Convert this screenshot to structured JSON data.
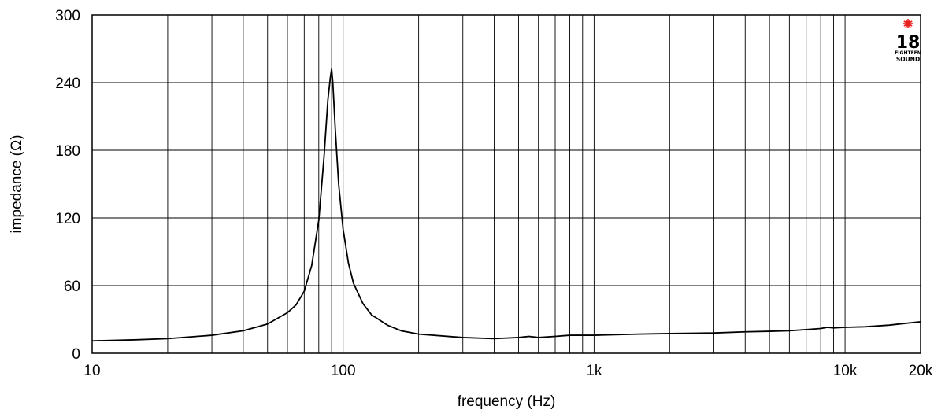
{
  "chart_data": {
    "type": "line",
    "title": "",
    "xlabel": "frequency (Hz)",
    "ylabel": "impedance (Ω)",
    "x_scale": "log",
    "xlim": [
      10,
      20000
    ],
    "ylim": [
      0,
      300
    ],
    "grid": true,
    "x_tick_values": [
      10,
      100,
      1000,
      10000,
      20000
    ],
    "x_tick_labels": [
      "10",
      "100",
      "1k",
      "10k",
      "20k"
    ],
    "y_tick_values": [
      0,
      60,
      120,
      180,
      240,
      300
    ],
    "y_tick_labels": [
      "0",
      "60",
      "120",
      "180",
      "240",
      "300"
    ],
    "series": [
      {
        "color": "#000000",
        "x": [
          10,
          15,
          20,
          30,
          40,
          50,
          60,
          65,
          70,
          75,
          80,
          84,
          87,
          89,
          90,
          91,
          93,
          96,
          100,
          105,
          110,
          120,
          130,
          150,
          170,
          200,
          300,
          400,
          500,
          550,
          600,
          700,
          800,
          1000,
          1500,
          2000,
          3000,
          4000,
          5000,
          6000,
          7000,
          8000,
          8500,
          9000,
          10000,
          12000,
          15000,
          20000
        ],
        "y": [
          11,
          12,
          13,
          16,
          20,
          26,
          36,
          43,
          55,
          78,
          118,
          175,
          225,
          245,
          252,
          240,
          200,
          150,
          110,
          80,
          62,
          44,
          34,
          25,
          20,
          17,
          14,
          13,
          14,
          15,
          14,
          15,
          16,
          16,
          17,
          17.5,
          18,
          19,
          19.5,
          20,
          21,
          22,
          23,
          22.5,
          23,
          23.5,
          25,
          28
        ]
      }
    ]
  },
  "logo": {
    "number": "18",
    "small_text": "EIGHTEEN",
    "word": "SOUND",
    "accent_color": "#e8211d"
  }
}
